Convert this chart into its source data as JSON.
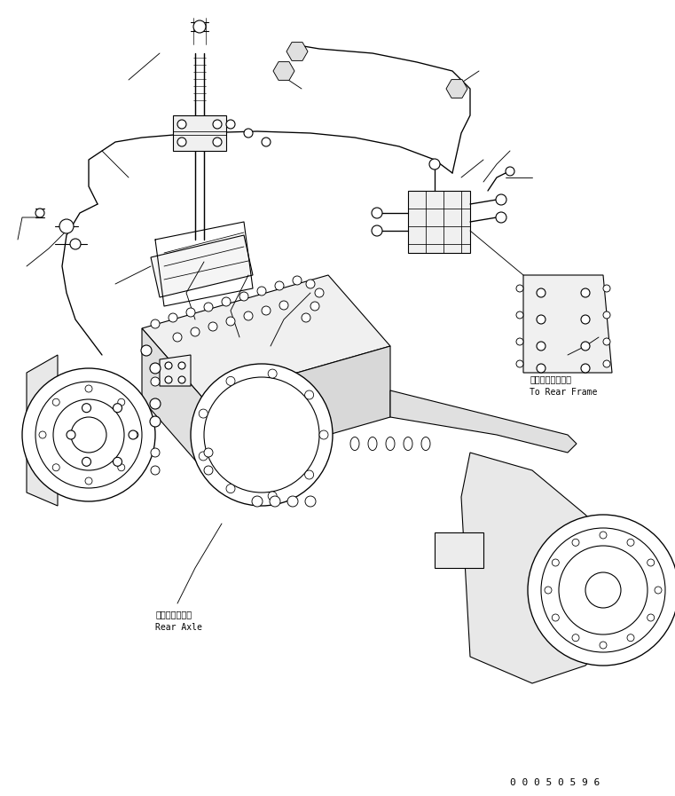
{
  "bg_color": "#ffffff",
  "line_color": "#000000",
  "fig_width": 7.61,
  "fig_height": 8.97,
  "dpi": 100,
  "annotation_rear_axle_jp": "リヤーアクスル",
  "annotation_rear_axle_en": "Rear Axle",
  "annotation_rear_frame_jp": "リヤーフレームヘ",
  "annotation_rear_frame_en": "To Rear Frame",
  "part_number": "0 0 0 5 0 5 9 6",
  "text_color": "#000000",
  "lw": 0.8
}
